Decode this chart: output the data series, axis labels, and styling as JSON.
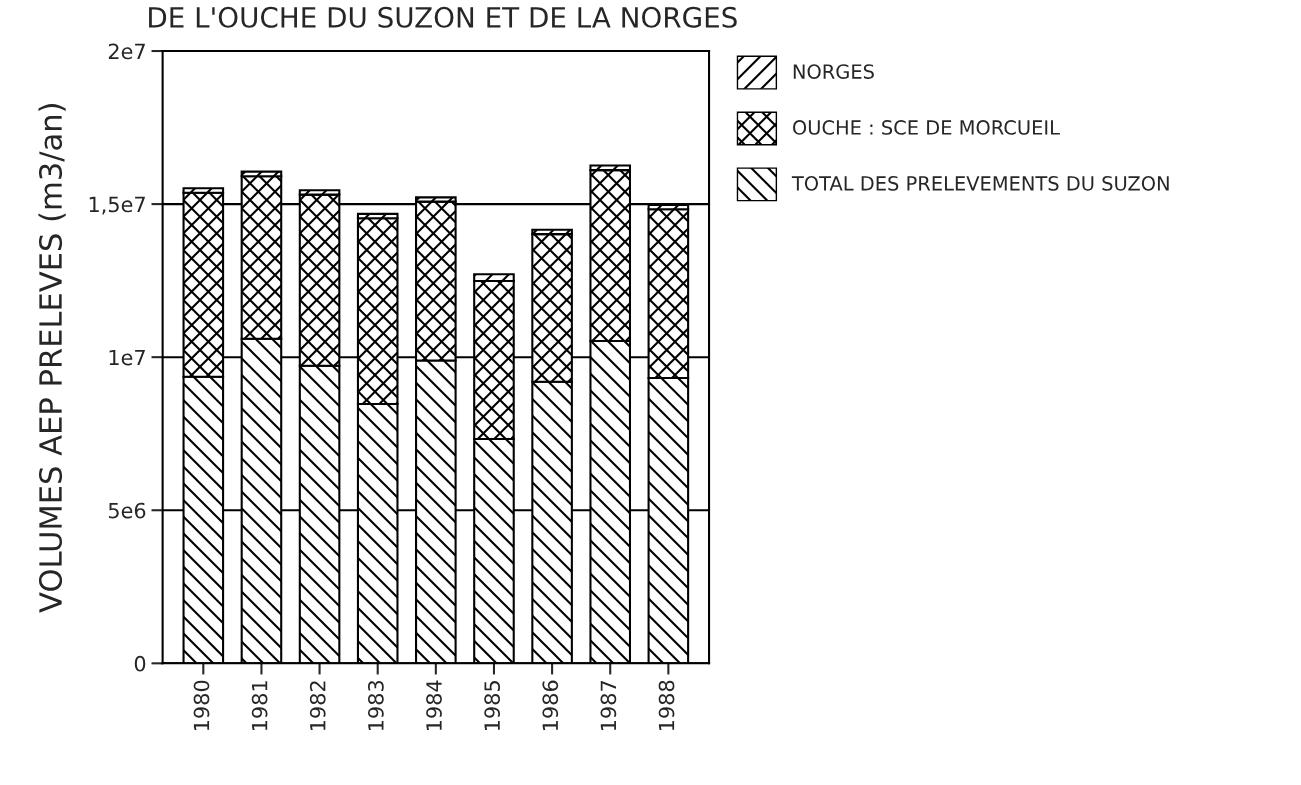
{
  "chart_data": {
    "type": "bar",
    "stacked": true,
    "title": "DE L'OUCHE DU SUZON ET DE LA NORGES",
    "ylabel": "VOLUMES AEP PRELEVES (m3/an)",
    "categories": [
      "1980",
      "1981",
      "1982",
      "1983",
      "1984",
      "1985",
      "1986",
      "1987",
      "1988"
    ],
    "series": [
      {
        "name": "TOTAL DES PRELEVEMENTS DU SUZON",
        "color": "#000000",
        "values": [
          9360000,
          10600000,
          9720000,
          8470000,
          9890000,
          7330000,
          9200000,
          10530000,
          9320000
        ]
      },
      {
        "name": "OUCHE : SCE DE MORCUEIL",
        "color": "#000000",
        "values": [
          6010000,
          5310000,
          5590000,
          6070000,
          5190000,
          5160000,
          4820000,
          5580000,
          5510000
        ]
      },
      {
        "name": "NORGES",
        "color": "#000000",
        "values": [
          150000,
          150000,
          140000,
          140000,
          140000,
          220000,
          140000,
          150000,
          140000
        ]
      }
    ],
    "ylim": [
      0,
      20000000
    ],
    "yticks": [
      0,
      {
        "value": 5000000,
        "label": "5e6"
      },
      {
        "value": 10000000,
        "label": "1e7"
      },
      {
        "value": 15000000,
        "label": "1,5e7"
      },
      {
        "value": 20000000,
        "label": "2e7"
      }
    ],
    "grid": "y",
    "legend": "top right"
  }
}
